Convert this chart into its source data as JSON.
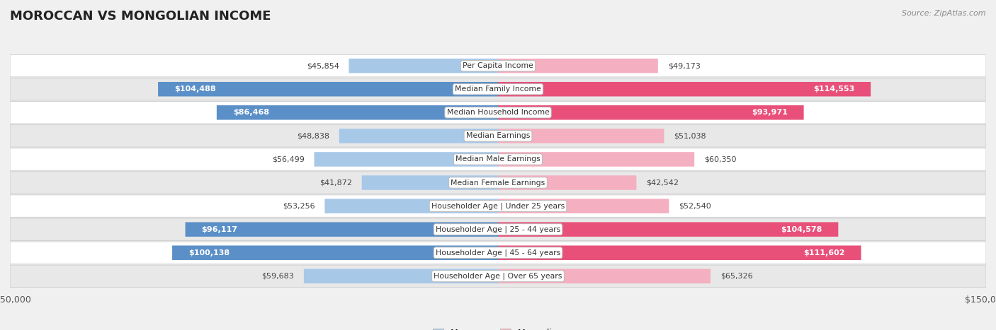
{
  "title": "MOROCCAN VS MONGOLIAN INCOME",
  "source": "Source: ZipAtlas.com",
  "categories": [
    "Per Capita Income",
    "Median Family Income",
    "Median Household Income",
    "Median Earnings",
    "Median Male Earnings",
    "Median Female Earnings",
    "Householder Age | Under 25 years",
    "Householder Age | 25 - 44 years",
    "Householder Age | 45 - 64 years",
    "Householder Age | Over 65 years"
  ],
  "moroccan": [
    45854,
    104488,
    86468,
    48838,
    56499,
    41872,
    53256,
    96117,
    100138,
    59683
  ],
  "mongolian": [
    49173,
    114553,
    93971,
    51038,
    60350,
    42542,
    52540,
    104578,
    111602,
    65326
  ],
  "moroccan_labels": [
    "$45,854",
    "$104,488",
    "$86,468",
    "$48,838",
    "$56,499",
    "$41,872",
    "$53,256",
    "$96,117",
    "$100,138",
    "$59,683"
  ],
  "mongolian_labels": [
    "$49,173",
    "$114,553",
    "$93,971",
    "$51,038",
    "$60,350",
    "$42,542",
    "$52,540",
    "$104,578",
    "$111,602",
    "$65,326"
  ],
  "moroccan_light": "#a8c8e8",
  "moroccan_dark": "#5b8fc7",
  "mongolian_light": "#f4afc0",
  "mongolian_dark": "#e8507a",
  "inside_threshold": 70000,
  "max_val": 150000,
  "bg_color": "#f0f0f0",
  "row_bg_even": "#ffffff",
  "row_bg_odd": "#e8e8e8",
  "label_color_outside": "#444444",
  "label_color_inside": "#ffffff"
}
